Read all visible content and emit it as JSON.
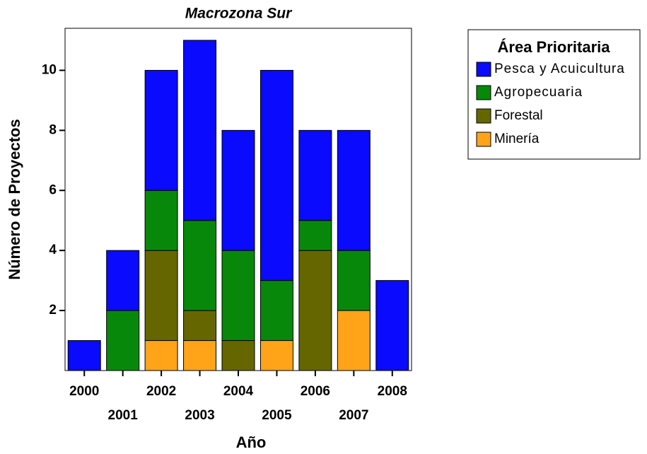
{
  "chart_data": {
    "type": "stacked_bar",
    "title": "Macrozona Sur",
    "x_label": "Año",
    "y_label": "Número de Proyectos",
    "legend_title": "Área Prioritaria",
    "categories": [
      "2000",
      "2001",
      "2002",
      "2003",
      "2004",
      "2005",
      "2006",
      "2007",
      "2008"
    ],
    "series": [
      {
        "name": "Pesca y Acuicultura",
        "color": "#0a0aff",
        "values": [
          1,
          2,
          4,
          6,
          4,
          7,
          3,
          4,
          3
        ]
      },
      {
        "name": "Agropecuaria",
        "color": "#08880a",
        "values": [
          null,
          2,
          2,
          3,
          3,
          2,
          1,
          2,
          null
        ]
      },
      {
        "name": "Forestal",
        "color": "#666600",
        "values": [
          null,
          null,
          3,
          1,
          1,
          null,
          4,
          null,
          null
        ]
      },
      {
        "name": "Minería",
        "color": "#ffa319",
        "values": [
          null,
          null,
          1,
          1,
          null,
          1,
          null,
          2,
          null
        ]
      }
    ],
    "ylim": [
      0,
      11.4
    ],
    "yticks": [
      2,
      4,
      6,
      8,
      10
    ],
    "legend": "right"
  }
}
